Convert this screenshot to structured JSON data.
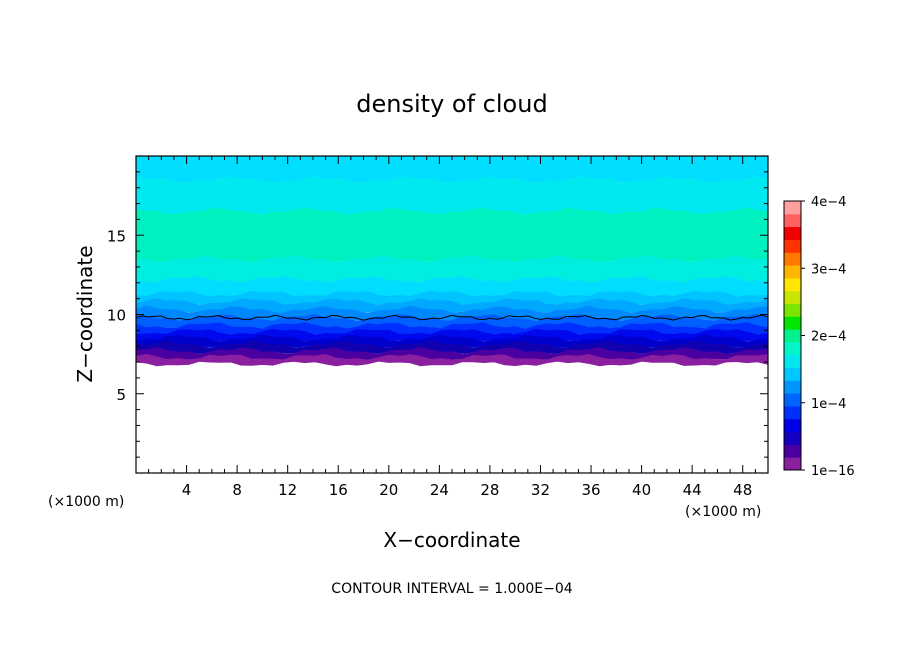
{
  "chart_data": {
    "type": "heatmap",
    "title": "density of cloud",
    "xlabel": "X−coordinate",
    "ylabel": "Z−coordinate",
    "x_unit_left": "(×1000 m)",
    "x_unit_right": "(×1000 m)",
    "footer": "CONTOUR INTERVAL = 1.000E−04",
    "xlim": [
      0,
      50
    ],
    "ylim": [
      0,
      20
    ],
    "x_ticks": [
      4,
      8,
      12,
      16,
      20,
      24,
      28,
      32,
      36,
      40,
      44,
      48
    ],
    "x_tick_labels": [
      "4",
      "8",
      "12",
      "16",
      "20",
      "24",
      "28",
      "32",
      "36",
      "40",
      "44",
      "48"
    ],
    "y_ticks": [
      5,
      10,
      15
    ],
    "y_tick_labels": [
      "5",
      "10",
      "15"
    ],
    "colorbar": {
      "min": 1e-16,
      "max": 0.0004,
      "tick_values": [
        1e-16,
        0.0001,
        0.0002,
        0.0003,
        0.0004
      ],
      "tick_labels": [
        "1e−16",
        "1e−4",
        "2e−4",
        "3e−4",
        "4e−4"
      ],
      "colors": [
        "#8a1fa0",
        "#4a00a0",
        "#1400c0",
        "#0000e8",
        "#0030ff",
        "#0064ff",
        "#0096ff",
        "#00c8ff",
        "#00e6f0",
        "#00f5c8",
        "#00f090",
        "#00e600",
        "#7ae600",
        "#c8e600",
        "#ffe600",
        "#ffb400",
        "#ff7800",
        "#ff3200",
        "#f00000",
        "#ff6060",
        "#ffa0a0"
      ]
    },
    "field_bands": [
      {
        "z_bottom": 18.5,
        "z_top": 20,
        "color": "#00ddff"
      },
      {
        "z_bottom": 16.5,
        "z_top": 18.5,
        "color": "#00e8f0"
      },
      {
        "z_bottom": 13.5,
        "z_top": 16.5,
        "color": "#00f0c0"
      },
      {
        "z_bottom": 12.2,
        "z_top": 13.5,
        "color": "#00eee0"
      },
      {
        "z_bottom": 11.3,
        "z_top": 12.2,
        "color": "#00ddff"
      },
      {
        "z_bottom": 10.8,
        "z_top": 11.3,
        "color": "#00c4ff"
      },
      {
        "z_bottom": 10.3,
        "z_top": 10.8,
        "color": "#00a8ff"
      },
      {
        "z_bottom": 9.8,
        "z_top": 10.3,
        "color": "#0088ff"
      },
      {
        "z_bottom": 9.3,
        "z_top": 9.8,
        "color": "#0060ff"
      },
      {
        "z_bottom": 8.9,
        "z_top": 9.3,
        "color": "#0030ff"
      },
      {
        "z_bottom": 8.5,
        "z_top": 8.9,
        "color": "#0008ee"
      },
      {
        "z_bottom": 8.1,
        "z_top": 8.5,
        "color": "#0000cc"
      },
      {
        "z_bottom": 7.7,
        "z_top": 8.1,
        "color": "#1000b0"
      },
      {
        "z_bottom": 7.3,
        "z_top": 7.7,
        "color": "#4a00a0"
      },
      {
        "z_bottom": 6.9,
        "z_top": 7.3,
        "color": "#8a1fa0"
      }
    ],
    "contour_line_z": 9.8,
    "cloud_base_z": 7.0
  }
}
